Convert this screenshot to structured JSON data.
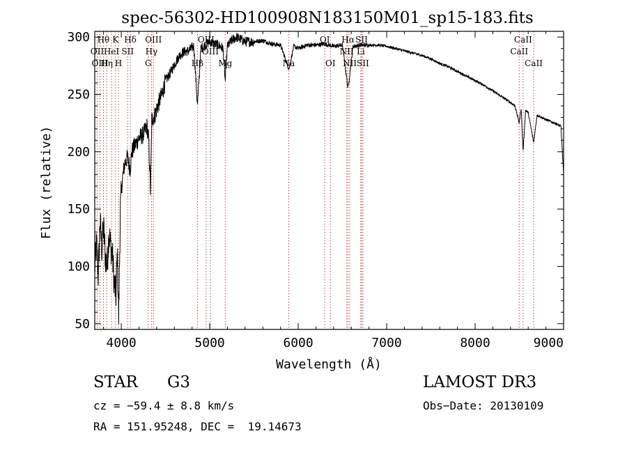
{
  "chart_data": {
    "type": "line",
    "title": "spec-56302-HD100908N183150M01_sp15-183.fits",
    "xlabel": "Wavelength (Å)",
    "ylabel": "Flux (relative)",
    "xlim": [
      3700,
      9000
    ],
    "ylim": [
      45,
      305
    ],
    "xticks": [
      4000,
      5000,
      6000,
      7000,
      8000,
      9000
    ],
    "yticks": [
      50,
      100,
      150,
      200,
      250,
      300
    ],
    "anchors": [
      [
        3700,
        98
      ],
      [
        3720,
        120
      ],
      [
        3740,
        92
      ],
      [
        3760,
        140
      ],
      [
        3780,
        115
      ],
      [
        3800,
        135
      ],
      [
        3820,
        108
      ],
      [
        3840,
        100
      ],
      [
        3860,
        130
      ],
      [
        3880,
        118
      ],
      [
        3900,
        110
      ],
      [
        3920,
        85
      ],
      [
        3940,
        75
      ],
      [
        3955,
        112
      ],
      [
        3970,
        55
      ],
      [
        3990,
        150
      ],
      [
        4010,
        175
      ],
      [
        4040,
        190
      ],
      [
        4070,
        195
      ],
      [
        4100,
        185
      ],
      [
        4120,
        200
      ],
      [
        4150,
        205
      ],
      [
        4200,
        212
      ],
      [
        4250,
        215
      ],
      [
        4290,
        222
      ],
      [
        4310,
        210
      ],
      [
        4330,
        165
      ],
      [
        4345,
        228
      ],
      [
        4380,
        232
      ],
      [
        4420,
        242
      ],
      [
        4460,
        250
      ],
      [
        4500,
        262
      ],
      [
        4550,
        268
      ],
      [
        4600,
        276
      ],
      [
        4650,
        283
      ],
      [
        4700,
        287
      ],
      [
        4760,
        288
      ],
      [
        4820,
        292
      ],
      [
        4861,
        240
      ],
      [
        4900,
        290
      ],
      [
        4950,
        293
      ],
      [
        5000,
        296
      ],
      [
        5050,
        294
      ],
      [
        5100,
        293
      ],
      [
        5150,
        290
      ],
      [
        5175,
        262
      ],
      [
        5200,
        292
      ],
      [
        5250,
        297
      ],
      [
        5300,
        300
      ],
      [
        5400,
        296
      ],
      [
        5500,
        296
      ],
      [
        5600,
        297
      ],
      [
        5700,
        294
      ],
      [
        5800,
        293
      ],
      [
        5895,
        272
      ],
      [
        5950,
        292
      ],
      [
        6000,
        290
      ],
      [
        6100,
        293
      ],
      [
        6200,
        293
      ],
      [
        6300,
        294
      ],
      [
        6400,
        292
      ],
      [
        6500,
        293
      ],
      [
        6563,
        255
      ],
      [
        6620,
        292
      ],
      [
        6700,
        293
      ],
      [
        6800,
        293
      ],
      [
        6900,
        293
      ],
      [
        7000,
        292
      ],
      [
        7100,
        290
      ],
      [
        7200,
        288
      ],
      [
        7300,
        286
      ],
      [
        7400,
        284
      ],
      [
        7500,
        281
      ],
      [
        7600,
        277
      ],
      [
        7700,
        274
      ],
      [
        7800,
        270
      ],
      [
        7900,
        266
      ],
      [
        8000,
        262
      ],
      [
        8100,
        258
      ],
      [
        8200,
        253
      ],
      [
        8300,
        248
      ],
      [
        8400,
        243
      ],
      [
        8450,
        240
      ],
      [
        8498,
        225
      ],
      [
        8520,
        238
      ],
      [
        8542,
        200
      ],
      [
        8570,
        236
      ],
      [
        8600,
        234
      ],
      [
        8662,
        208
      ],
      [
        8700,
        232
      ],
      [
        8800,
        228
      ],
      [
        8900,
        225
      ],
      [
        8970,
        222
      ],
      [
        9000,
        180
      ]
    ],
    "lines": [
      {
        "label": "Hθ",
        "wave": 3798,
        "tier": 0
      },
      {
        "label": "OII",
        "wave": 3727,
        "tier": 1
      },
      {
        "label": "OIII",
        "wave": 3760,
        "tier": 2
      },
      {
        "label": "K",
        "wave": 3934,
        "tier": 0
      },
      {
        "label": "Hη",
        "wave": 3835,
        "tier": 2
      },
      {
        "label": "HeI",
        "wave": 3889,
        "tier": 1
      },
      {
        "label": "H",
        "wave": 3969,
        "tier": 2
      },
      {
        "label": "Hδ",
        "wave": 4102,
        "tier": 0
      },
      {
        "label": "SII",
        "wave": 4072,
        "tier": 1
      },
      {
        "label": "OIII",
        "wave": 4363,
        "tier": 0
      },
      {
        "label": "Hγ",
        "wave": 4341,
        "tier": 1
      },
      {
        "label": "G",
        "wave": 4305,
        "tier": 2
      },
      {
        "label": "OIII",
        "wave": 4959,
        "tier": 0
      },
      {
        "label": "OIII",
        "wave": 5007,
        "tier": 1
      },
      {
        "label": "Hβ",
        "wave": 4861,
        "tier": 2
      },
      {
        "label": "Mg",
        "wave": 5175,
        "tier": 2
      },
      {
        "label": "Na",
        "wave": 5893,
        "tier": 2
      },
      {
        "label": "OI",
        "wave": 6300,
        "tier": 0
      },
      {
        "label": "OI",
        "wave": 6364,
        "tier": 2
      },
      {
        "label": "Hα",
        "wave": 6563,
        "tier": 0
      },
      {
        "label": "SII",
        "wave": 6716,
        "tier": 0
      },
      {
        "label": "NII",
        "wave": 6548,
        "tier": 1
      },
      {
        "label": "Li",
        "wave": 6708,
        "tier": 1
      },
      {
        "label": "NII",
        "wave": 6583,
        "tier": 2
      },
      {
        "label": "SII",
        "wave": 6731,
        "tier": 2
      },
      {
        "label": "CaII",
        "wave": 8542,
        "tier": 0
      },
      {
        "label": "CaII",
        "wave": 8498,
        "tier": 1
      },
      {
        "label": "CaII",
        "wave": 8662,
        "tier": 2
      }
    ]
  },
  "info": {
    "class_label": "STAR",
    "subclass": "G3",
    "cz": "cz = −59.4 ± 8.8 km/s",
    "radec": "RA = 151.95248, DEC =  19.14673",
    "survey": "LAMOST DR3",
    "obs_date": "Obs−Date: 20130109"
  }
}
